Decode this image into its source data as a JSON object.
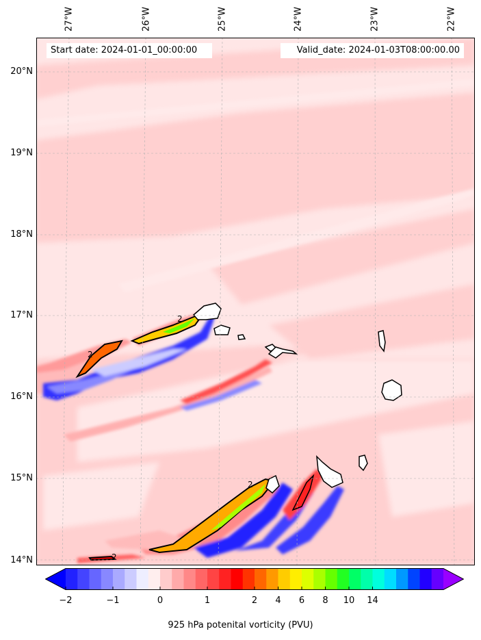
{
  "header": {
    "start": "Start date: 2024-01-01_00:00:00",
    "valid": "Valid_date: 2024-01-03T08:00:00.00"
  },
  "map": {
    "lon_labels": [
      "27°W",
      "26°W",
      "25°W",
      "24°W",
      "23°W",
      "22°W"
    ],
    "lat_labels": [
      "20°N",
      "19°N",
      "18°N",
      "17°N",
      "16°N",
      "15°N",
      "14°N"
    ],
    "contour_label": "2"
  },
  "colorbar": {
    "ticks": [
      "−2",
      "−1",
      "0",
      "1",
      "2",
      "4",
      "6",
      "8",
      "10",
      "14"
    ],
    "label": "925 hPa potenital vorticity (PVU)",
    "colors": [
      "#0000ff",
      "#2222ff",
      "#4444ff",
      "#6666ff",
      "#8888ff",
      "#aaaaff",
      "#ccccff",
      "#eeeeff",
      "#ffeeee",
      "#ffcccc",
      "#ffaaaa",
      "#ff8888",
      "#ff6666",
      "#ff4444",
      "#ff2222",
      "#ff0000",
      "#ff3300",
      "#ff6600",
      "#ff9900",
      "#ffcc00",
      "#ffee00",
      "#ddff00",
      "#aaff00",
      "#66ff00",
      "#22ff22",
      "#00ff66",
      "#00ffaa",
      "#00ffdd",
      "#00ddff",
      "#0099ff",
      "#0044ff",
      "#2200ff",
      "#6600ff",
      "#9900ff"
    ]
  }
}
